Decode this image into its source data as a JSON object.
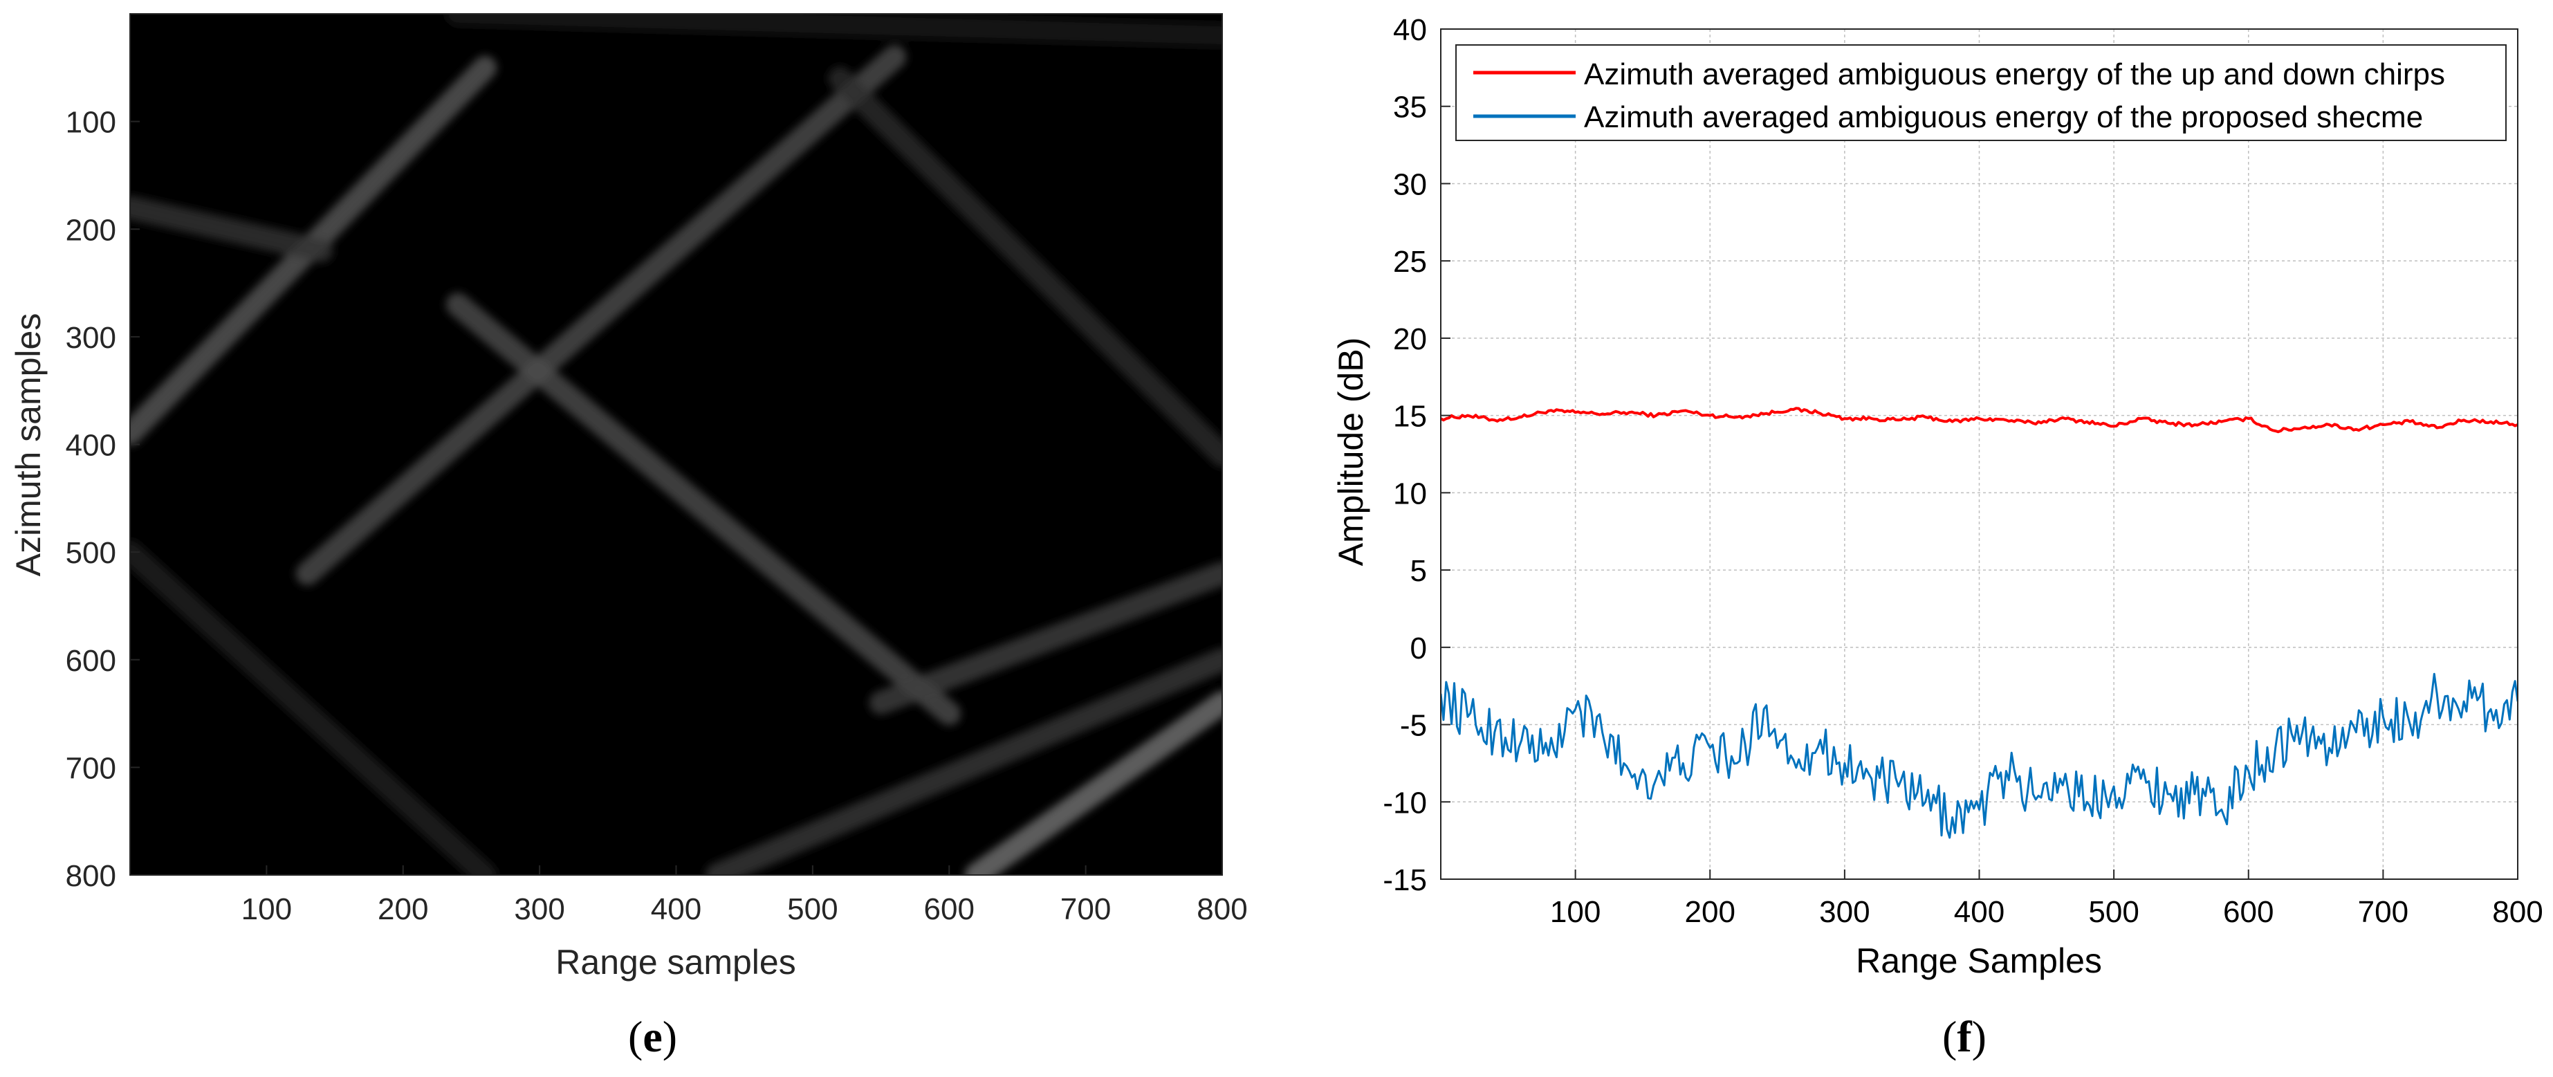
{
  "panels": {
    "left": {
      "label_open": "(",
      "label_letter": "e",
      "label_close": ")"
    },
    "right": {
      "label_open": "(",
      "label_letter": "f",
      "label_close": ")"
    }
  },
  "chart_data": [
    {
      "type": "heatmap",
      "title": "",
      "xlabel": "Range samples",
      "ylabel": "Azimuth samples",
      "xlim": [
        0,
        800
      ],
      "ylim": [
        800,
        0
      ],
      "xticks": [
        100,
        200,
        300,
        400,
        500,
        600,
        700,
        800
      ],
      "yticks": [
        100,
        200,
        300,
        400,
        500,
        600,
        700,
        800
      ],
      "colormap": "gray",
      "background_color": "#000000",
      "features": [
        {
          "name": "streak-1",
          "from": [
            0,
            390
          ],
          "to": [
            260,
            50
          ],
          "intensity": 0.35
        },
        {
          "name": "streak-2",
          "from": [
            130,
            520
          ],
          "to": [
            560,
            40
          ],
          "intensity": 0.3
        },
        {
          "name": "streak-3",
          "from": [
            240,
            270
          ],
          "to": [
            600,
            650
          ],
          "intensity": 0.3
        },
        {
          "name": "streak-4",
          "from": [
            520,
            60
          ],
          "to": [
            800,
            410
          ],
          "intensity": 0.18
        },
        {
          "name": "streak-5",
          "from": [
            550,
            640
          ],
          "to": [
            800,
            520
          ],
          "intensity": 0.25
        },
        {
          "name": "streak-6",
          "from": [
            430,
            800
          ],
          "to": [
            800,
            600
          ],
          "intensity": 0.22
        },
        {
          "name": "streak-7",
          "from": [
            620,
            800
          ],
          "to": [
            800,
            640
          ],
          "intensity": 0.45
        },
        {
          "name": "streak-8",
          "from": [
            0,
            180
          ],
          "to": [
            140,
            220
          ],
          "intensity": 0.2
        },
        {
          "name": "streak-9",
          "from": [
            0,
            500
          ],
          "to": [
            260,
            800
          ],
          "intensity": 0.12
        },
        {
          "name": "streak-10",
          "from": [
            240,
            0
          ],
          "to": [
            800,
            20
          ],
          "intensity": 0.1
        }
      ]
    },
    {
      "type": "line",
      "title": "",
      "xlabel": "Range Samples",
      "ylabel": "Amplitude (dB)",
      "xlim": [
        0,
        800
      ],
      "ylim": [
        -15,
        40
      ],
      "xticks": [
        100,
        200,
        300,
        400,
        500,
        600,
        700,
        800
      ],
      "yticks": [
        -15,
        -10,
        -5,
        0,
        5,
        10,
        15,
        20,
        25,
        30,
        35,
        40
      ],
      "grid": true,
      "legend_position": "top",
      "series": [
        {
          "name": "Azimuth averaged ambiguous energy of the up and down chirps",
          "color": "#ff0000",
          "x": [
            0,
            20,
            40,
            60,
            80,
            100,
            120,
            140,
            160,
            180,
            200,
            220,
            240,
            260,
            280,
            300,
            320,
            340,
            360,
            380,
            400,
            420,
            440,
            460,
            480,
            500,
            520,
            540,
            560,
            580,
            600,
            620,
            640,
            660,
            680,
            700,
            720,
            740,
            760,
            780,
            800
          ],
          "values": [
            14.8,
            15.0,
            14.7,
            14.9,
            15.3,
            15.2,
            15.1,
            15.2,
            15.0,
            15.3,
            15.0,
            14.9,
            15.1,
            15.4,
            15.2,
            14.8,
            14.8,
            14.7,
            14.9,
            14.6,
            14.8,
            14.7,
            14.5,
            14.8,
            14.6,
            14.3,
            14.8,
            14.5,
            14.4,
            14.6,
            14.8,
            14.0,
            14.2,
            14.4,
            14.1,
            14.4,
            14.6,
            14.2,
            14.7,
            14.6,
            14.4
          ]
        },
        {
          "name": "Azimuth averaged ambiguous energy of the proposed shecme",
          "color": "#0072bd",
          "x": [
            0,
            20,
            40,
            60,
            80,
            100,
            120,
            140,
            160,
            180,
            200,
            220,
            240,
            260,
            280,
            300,
            320,
            340,
            360,
            380,
            400,
            420,
            440,
            460,
            480,
            500,
            520,
            540,
            560,
            580,
            600,
            620,
            640,
            660,
            680,
            700,
            720,
            740,
            760,
            780,
            800
          ],
          "values": [
            -3.0,
            -4.5,
            -5.5,
            -6.0,
            -7.0,
            -4.0,
            -5.5,
            -8.0,
            -8.5,
            -7.5,
            -6.5,
            -7.5,
            -4.0,
            -7.0,
            -6.5,
            -7.5,
            -8.5,
            -9.0,
            -10.0,
            -11.0,
            -10.5,
            -8.0,
            -9.5,
            -8.5,
            -10.0,
            -9.0,
            -8.5,
            -9.5,
            -9.5,
            -10.5,
            -8.0,
            -6.5,
            -5.5,
            -6.5,
            -5.5,
            -4.5,
            -5.0,
            -3.0,
            -3.5,
            -4.0,
            -3.5
          ]
        }
      ]
    }
  ]
}
